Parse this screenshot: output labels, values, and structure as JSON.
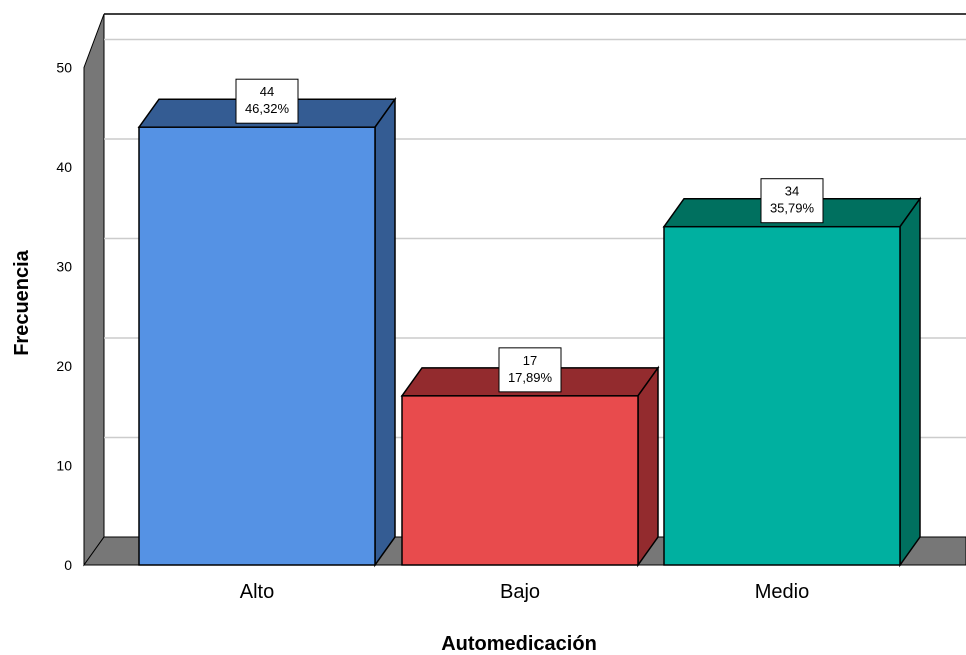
{
  "chart_data": {
    "type": "bar",
    "categories": [
      "Alto",
      "Bajo",
      "Medio"
    ],
    "values": [
      44,
      17,
      34
    ],
    "percent_labels": [
      "46,32%",
      "17,89%",
      "35,79%"
    ],
    "xlabel": "Automedicación",
    "ylabel": "Frecuencia",
    "ylim": [
      0,
      50
    ],
    "yticks": [
      "0",
      "10",
      "20",
      "30",
      "40",
      "50"
    ],
    "grid": true,
    "style": "3d",
    "colors": {
      "front": [
        "#5592E4",
        "#E84B4D",
        "#00B0A0"
      ],
      "top": [
        "#345C93",
        "#932B2E",
        "#00705F"
      ],
      "side": [
        "#345C93",
        "#932B2E",
        "#00705F"
      ],
      "floor": "#777777",
      "wall": "#777777",
      "gridline": "#CCCCCC"
    }
  }
}
